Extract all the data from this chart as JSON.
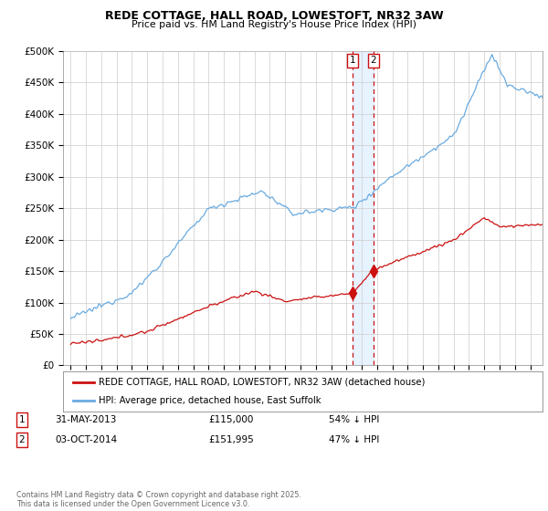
{
  "title1": "REDE COTTAGE, HALL ROAD, LOWESTOFT, NR32 3AW",
  "title2": "Price paid vs. HM Land Registry's House Price Index (HPI)",
  "ylim": [
    0,
    500000
  ],
  "yticks": [
    0,
    50000,
    100000,
    150000,
    200000,
    250000,
    300000,
    350000,
    400000,
    450000,
    500000
  ],
  "ytick_labels": [
    "£0",
    "£50K",
    "£100K",
    "£150K",
    "£200K",
    "£250K",
    "£300K",
    "£350K",
    "£400K",
    "£450K",
    "£500K"
  ],
  "xlim_start": 1994.5,
  "xlim_end": 2025.8,
  "hpi_color": "#6aabe0",
  "price_color": "#cc1111",
  "vline_color": "#cc1111",
  "vfill_color": "#ddeeff",
  "legend_label_red": "REDE COTTAGE, HALL ROAD, LOWESTOFT, NR32 3AW (detached house)",
  "legend_label_blue": "HPI: Average price, detached house, East Suffolk",
  "transactions": [
    {
      "id": 1,
      "date": "31-MAY-2013",
      "price": "£115,000",
      "note": "54% ↓ HPI",
      "year": 2013.42
    },
    {
      "id": 2,
      "date": "03-OCT-2014",
      "price": "£151,995",
      "note": "47% ↓ HPI",
      "year": 2014.75
    }
  ],
  "footnote": "Contains HM Land Registry data © Crown copyright and database right 2025.\nThis data is licensed under the Open Government Licence v3.0.",
  "background_color": "#ffffff",
  "grid_color": "#cccccc"
}
